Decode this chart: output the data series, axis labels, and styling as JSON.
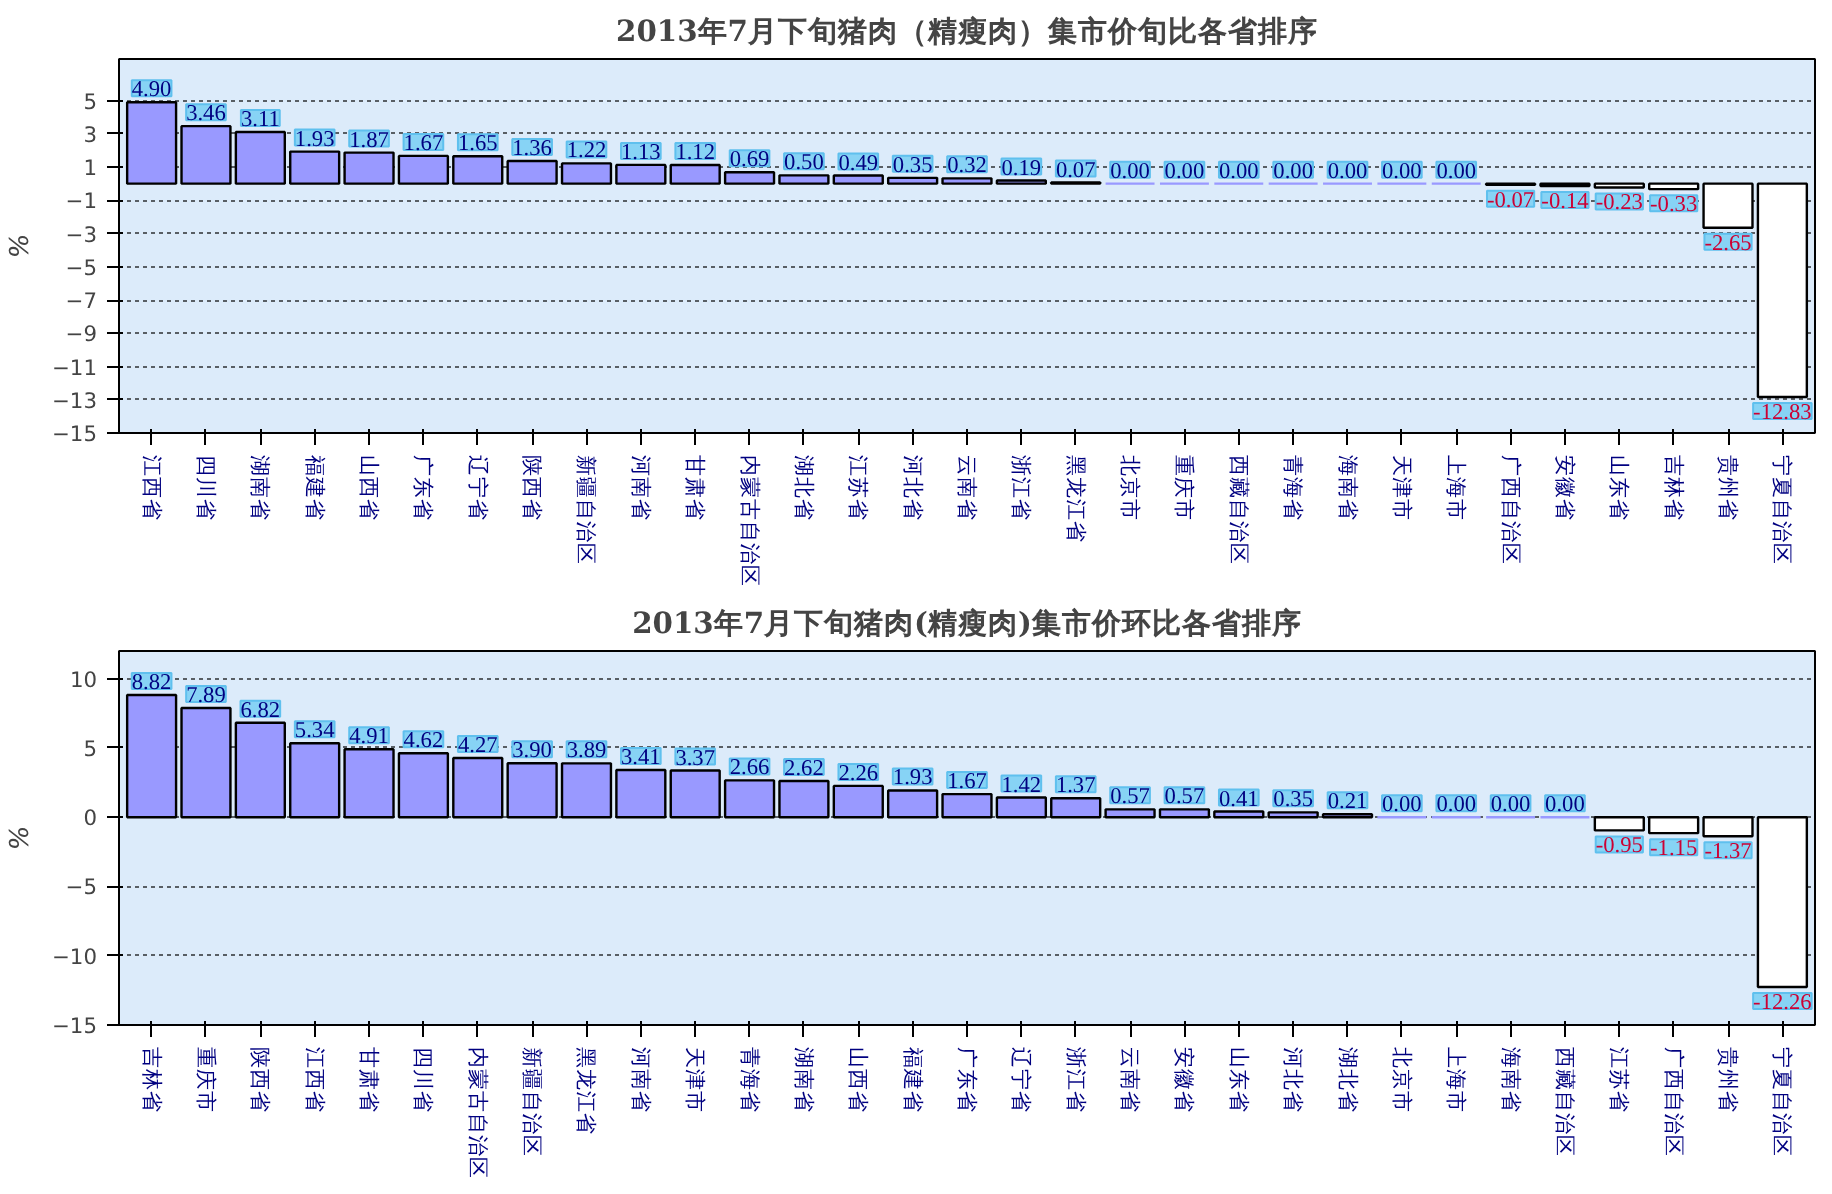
{
  "chart_data": [
    {
      "type": "bar",
      "title": "2013年7月下旬猪肉（精瘦肉）集市价旬比各省排序",
      "ylabel": "%",
      "categories": [
        "江西省",
        "四川省",
        "湖南省",
        "福建省",
        "山西省",
        "广东省",
        "辽宁省",
        "陕西省",
        "新疆自治区",
        "河南省",
        "甘肃省",
        "内蒙古自治区",
        "湖北省",
        "江苏省",
        "河北省",
        "云南省",
        "浙江省",
        "黑龙江省",
        "北京市",
        "重庆市",
        "西藏自治区",
        "青海省",
        "海南省",
        "天津市",
        "上海市",
        "广西自治区",
        "安徽省",
        "山东省",
        "吉林省",
        "贵州省",
        "宁夏自治区"
      ],
      "values": [
        4.9,
        3.46,
        3.11,
        1.93,
        1.87,
        1.67,
        1.65,
        1.36,
        1.22,
        1.13,
        1.12,
        0.69,
        0.5,
        0.49,
        0.35,
        0.32,
        0.19,
        0.07,
        0,
        0,
        0,
        0,
        0,
        0,
        0,
        -0.07,
        -0.14,
        -0.23,
        -0.33,
        -2.65,
        -12.83
      ],
      "value_labels": [
        "4.90",
        "3.46",
        "3.11",
        "1.93",
        "1.87",
        "1.67",
        "1.65",
        "1.36",
        "1.22",
        "1.13",
        "1.12",
        "0.69",
        "0.50",
        "0.49",
        "0.35",
        "0.32",
        "0.19",
        "0.07",
        "0.00",
        "0.00",
        "0.00",
        "0.00",
        "0.00",
        "0.00",
        "0.00",
        "-0.07",
        "-0.14",
        "-0.23",
        "-0.33",
        "-2.65",
        "-12.83"
      ],
      "colors": [
        "#9999ff",
        "#9999ff",
        "#9999ff",
        "#9999ff",
        "#9999ff",
        "#9999ff",
        "#9999ff",
        "#9999ff",
        "#9999ff",
        "#9999ff",
        "#9999ff",
        "#9999ff",
        "#9999ff",
        "#9999ff",
        "#9999ff",
        "#9999ff",
        "#9999ff",
        "#9999ff",
        "#9999ff",
        "#9999ff",
        "#9999ff",
        "#9999ff",
        "#9999ff",
        "#9999ff",
        "#9999ff",
        "#ffffff",
        "#ffffff",
        "#ffffff",
        "#ffffff",
        "#ffffff",
        "#ffffff"
      ],
      "ylim": [
        -15,
        7.5
      ],
      "yticks": [
        5,
        3,
        1,
        -1,
        -3,
        -5,
        -7,
        -9,
        -11,
        -13,
        -15
      ],
      "grid": "y"
    },
    {
      "type": "bar",
      "title": "2013年7月下旬猪肉(精瘦肉)集市价环比各省排序",
      "ylabel": "%",
      "categories": [
        "吉林省",
        "重庆市",
        "陕西省",
        "江西省",
        "甘肃省",
        "四川省",
        "内蒙古自治区",
        "新疆自治区",
        "黑龙江省",
        "河南省",
        "天津市",
        "青海省",
        "湖南省",
        "山西省",
        "福建省",
        "广东省",
        "辽宁省",
        "浙江省",
        "云南省",
        "安徽省",
        "山东省",
        "河北省",
        "湖北省",
        "北京市",
        "上海市",
        "海南省",
        "西藏自治区",
        "江苏省",
        "广西自治区",
        "贵州省",
        "宁夏自治区"
      ],
      "values": [
        8.82,
        7.89,
        6.82,
        5.34,
        4.91,
        4.62,
        4.27,
        3.9,
        3.89,
        3.41,
        3.37,
        2.66,
        2.62,
        2.26,
        1.93,
        1.67,
        1.42,
        1.37,
        0.57,
        0.57,
        0.41,
        0.35,
        0.21,
        0,
        0,
        0,
        0,
        -0.95,
        -1.15,
        -1.37,
        -12.26
      ],
      "value_labels": [
        "8.82",
        "7.89",
        "6.82",
        "5.34",
        "4.91",
        "4.62",
        "4.27",
        "3.90",
        "3.89",
        "3.41",
        "3.37",
        "2.66",
        "2.62",
        "2.26",
        "1.93",
        "1.67",
        "1.42",
        "1.37",
        "0.57",
        "0.57",
        "0.41",
        "0.35",
        "0.21",
        "0.00",
        "0.00",
        "0.00",
        "0.00",
        "-0.95",
        "-1.15",
        "-1.37",
        "-12.26"
      ],
      "colors": [
        "#9999ff",
        "#9999ff",
        "#9999ff",
        "#9999ff",
        "#9999ff",
        "#9999ff",
        "#9999ff",
        "#9999ff",
        "#9999ff",
        "#9999ff",
        "#9999ff",
        "#9999ff",
        "#9999ff",
        "#9999ff",
        "#9999ff",
        "#9999ff",
        "#9999ff",
        "#9999ff",
        "#9999ff",
        "#9999ff",
        "#9999ff",
        "#9999ff",
        "#9999ff",
        "#9999ff",
        "#9999ff",
        "#9999ff",
        "#9999ff",
        "#ffffff",
        "#ffffff",
        "#ffffff",
        "#ffffff"
      ],
      "ylim": [
        -15,
        12
      ],
      "yticks": [
        10,
        5,
        0,
        -5,
        -10,
        -15
      ],
      "grid": "y"
    }
  ]
}
